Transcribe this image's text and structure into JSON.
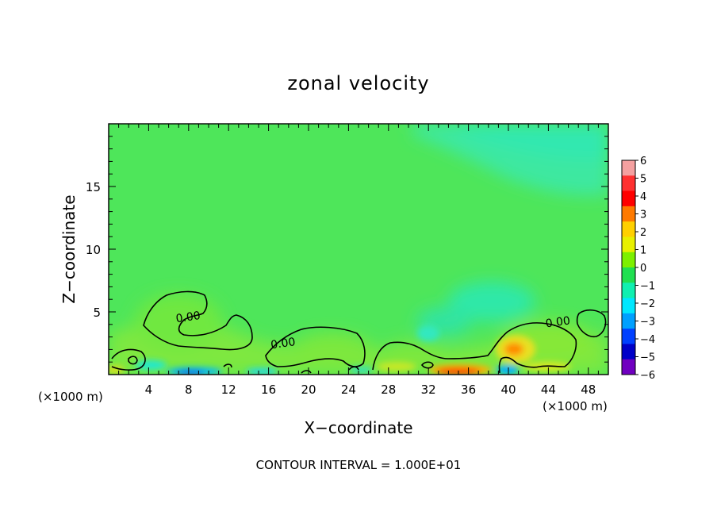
{
  "chart_data": {
    "type": "heatmap",
    "title": "zonal velocity",
    "xlabel": "X−coordinate",
    "ylabel": "Z−coordinate",
    "x_unit_left": "(×1000 m)",
    "x_unit_right": "(×1000 m)",
    "footer": "CONTOUR INTERVAL = 1.000E+01",
    "xlim": [
      0,
      50
    ],
    "ylim": [
      0,
      20
    ],
    "x_ticks": [
      4,
      8,
      12,
      16,
      20,
      24,
      28,
      32,
      36,
      40,
      44,
      48
    ],
    "y_ticks": [
      5,
      10,
      15
    ],
    "colorbar": {
      "levels": [
        6,
        5,
        4,
        3,
        2,
        1,
        0,
        -1,
        -2,
        -3,
        -4,
        -5,
        -6
      ],
      "labels": [
        "6",
        "5",
        "4",
        "3",
        "2",
        "1",
        "0",
        "−1",
        "−2",
        "−3",
        "−4",
        "−5",
        "−6"
      ],
      "colors": [
        "#f4a0a0",
        "#ff3030",
        "#ff0000",
        "#ff7a00",
        "#ffd000",
        "#e8f000",
        "#7df000",
        "#20e050",
        "#10f0b0",
        "#00e8ff",
        "#00a0ff",
        "#0040ff",
        "#0000c8",
        "#7000c0"
      ]
    },
    "contour_labels": [
      {
        "text": "0.00",
        "x": 8,
        "z": 4.3
      },
      {
        "text": "0.00",
        "x": 17.5,
        "z": 2.2
      },
      {
        "text": "0.00",
        "x": 45,
        "z": 3.9
      }
    ],
    "background_color": "#4ee65a"
  }
}
